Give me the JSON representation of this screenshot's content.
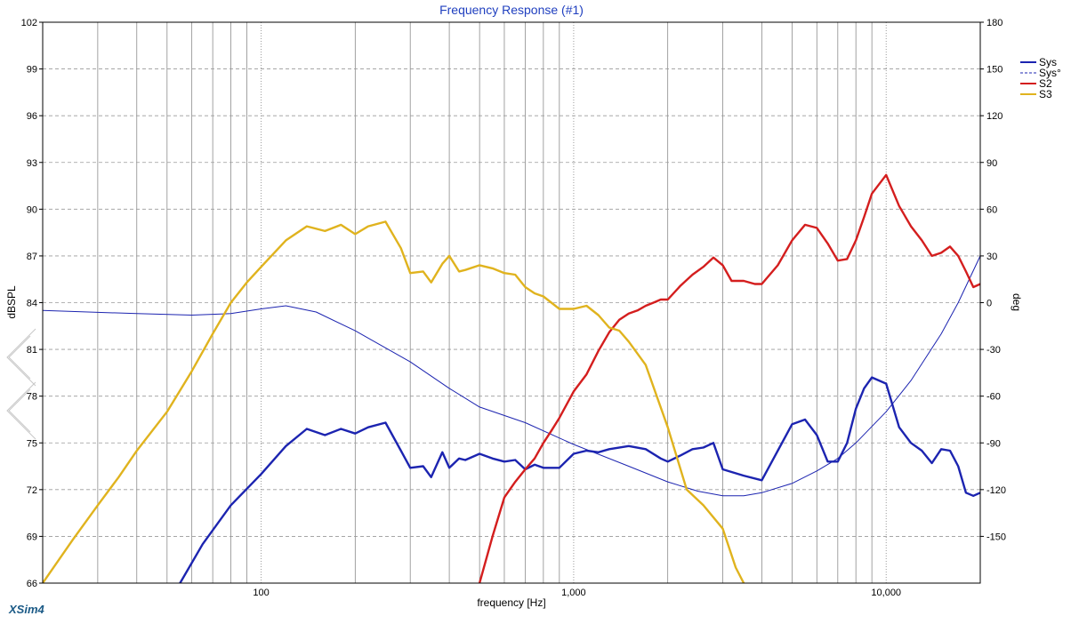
{
  "chart_data": {
    "type": "line",
    "title": "Frequency Response (#1)",
    "xlabel": "frequency [Hz]",
    "ylabel": "dBSPL",
    "y2label": "deg",
    "xscale": "log",
    "xlim": [
      20,
      20000
    ],
    "ylim": [
      66,
      102
    ],
    "y2lim": [
      -180,
      180
    ],
    "grid": true,
    "legend_position": "top-right",
    "x_tick_labels": [
      {
        "value": 100,
        "label": "100"
      },
      {
        "value": 1000,
        "label": "1,000"
      },
      {
        "value": 10000,
        "label": "10,000"
      }
    ],
    "y_ticks": [
      66,
      69,
      72,
      75,
      78,
      81,
      84,
      87,
      90,
      93,
      96,
      99,
      102
    ],
    "y2_ticks": [
      -150,
      -120,
      -90,
      -60,
      -30,
      0,
      30,
      60,
      90,
      120,
      150,
      180
    ],
    "series": [
      {
        "name": "Sys",
        "axis": "left",
        "color": "#1c24b0",
        "style": "solid",
        "x": [
          55,
          65,
          80,
          100,
          120,
          140,
          160,
          180,
          200,
          220,
          250,
          280,
          300,
          330,
          350,
          380,
          400,
          430,
          450,
          500,
          550,
          600,
          650,
          700,
          750,
          800,
          900,
          1000,
          1100,
          1200,
          1300,
          1500,
          1700,
          1900,
          2000,
          2200,
          2400,
          2600,
          2800,
          3000,
          3500,
          4000,
          4500,
          5000,
          5500,
          6000,
          6500,
          7000,
          7500,
          8000,
          8500,
          9000,
          10000,
          11000,
          12000,
          13000,
          14000,
          15000,
          16000,
          17000,
          18000,
          19000,
          20000
        ],
        "y": [
          66,
          68.5,
          71,
          73,
          74.8,
          75.9,
          75.5,
          75.9,
          75.6,
          76,
          76.3,
          74.5,
          73.4,
          73.5,
          72.8,
          74.4,
          73.4,
          74,
          73.9,
          74.3,
          74,
          73.8,
          73.9,
          73.3,
          73.6,
          73.4,
          73.4,
          74.3,
          74.5,
          74.4,
          74.6,
          74.8,
          74.6,
          74,
          73.8,
          74.2,
          74.6,
          74.7,
          75,
          73.3,
          72.9,
          72.6,
          74.5,
          76.2,
          76.5,
          75.5,
          73.8,
          73.8,
          75,
          77.2,
          78.5,
          79.2,
          78.8,
          76,
          75,
          74.5,
          73.7,
          74.6,
          74.5,
          73.5,
          71.8,
          71.6,
          71.8
        ]
      },
      {
        "name": "Sys°",
        "axis": "right",
        "color": "#1c24b0",
        "style": "dashed-thin",
        "x": [
          20,
          40,
          60,
          80,
          100,
          120,
          150,
          200,
          300,
          400,
          500,
          700,
          1000,
          1500,
          2000,
          2500,
          3000,
          3500,
          4000,
          5000,
          6000,
          7000,
          8000,
          10000,
          12000,
          15000,
          17000,
          20000
        ],
        "y": [
          -5,
          -7,
          -8,
          -7,
          -4,
          -2,
          -6,
          -18,
          -38,
          -55,
          -67,
          -77,
          -91,
          -105,
          -115,
          -121,
          -124,
          -124,
          -122,
          -116,
          -108,
          -100,
          -90,
          -70,
          -50,
          -20,
          0,
          30
        ]
      },
      {
        "name": "S2",
        "axis": "left",
        "color": "#d41e1e",
        "style": "solid",
        "x": [
          500,
          550,
          600,
          650,
          700,
          750,
          800,
          850,
          900,
          1000,
          1100,
          1200,
          1300,
          1400,
          1500,
          1600,
          1700,
          1800,
          1900,
          2000,
          2200,
          2400,
          2600,
          2800,
          3000,
          3200,
          3500,
          3800,
          4000,
          4500,
          5000,
          5500,
          6000,
          6500,
          7000,
          7500,
          8000,
          8500,
          9000,
          10000,
          11000,
          12000,
          13000,
          14000,
          15000,
          16000,
          17000,
          18000,
          19000,
          20000
        ],
        "y": [
          66,
          69,
          71.5,
          72.5,
          73.3,
          74,
          75,
          75.8,
          76.6,
          78.3,
          79.4,
          80.9,
          82.1,
          82.9,
          83.3,
          83.5,
          83.8,
          84,
          84.2,
          84.2,
          85.1,
          85.8,
          86.3,
          86.9,
          86.4,
          85.4,
          85.4,
          85.2,
          85.2,
          86.4,
          88,
          89,
          88.8,
          87.8,
          86.7,
          86.8,
          88,
          89.5,
          91,
          92.2,
          90.2,
          88.9,
          88,
          87,
          87.2,
          87.6,
          87,
          86,
          85,
          85.2
        ]
      },
      {
        "name": "S3",
        "axis": "left",
        "color": "#e0b31e",
        "style": "solid",
        "x": [
          20,
          25,
          30,
          35,
          40,
          50,
          60,
          70,
          80,
          90,
          100,
          120,
          140,
          160,
          180,
          200,
          220,
          250,
          280,
          300,
          330,
          350,
          380,
          400,
          430,
          450,
          500,
          550,
          600,
          650,
          700,
          750,
          800,
          900,
          1000,
          1100,
          1200,
          1300,
          1400,
          1500,
          1700,
          2000,
          2300,
          2600,
          3000,
          3300,
          3500
        ],
        "y": [
          66,
          68.8,
          71,
          72.8,
          74.5,
          77,
          79.6,
          82,
          84,
          85.3,
          86.3,
          88,
          88.9,
          88.6,
          89,
          88.4,
          88.9,
          89.2,
          87.5,
          85.9,
          86,
          85.3,
          86.5,
          87,
          86,
          86.1,
          86.4,
          86.2,
          85.9,
          85.8,
          85,
          84.6,
          84.4,
          83.6,
          83.6,
          83.8,
          83.2,
          82.4,
          82.2,
          81.5,
          80,
          76,
          72,
          71,
          69.5,
          67,
          66
        ]
      }
    ]
  },
  "legend": [
    {
      "label": "Sys",
      "color": "#1c24b0",
      "style": "solid"
    },
    {
      "label": "Sys°",
      "color": "#1c24b0",
      "style": "dashed"
    },
    {
      "label": "S2",
      "color": "#d41e1e",
      "style": "solid"
    },
    {
      "label": "S3",
      "color": "#e0b31e",
      "style": "solid"
    }
  ],
  "brand": "XSim4"
}
